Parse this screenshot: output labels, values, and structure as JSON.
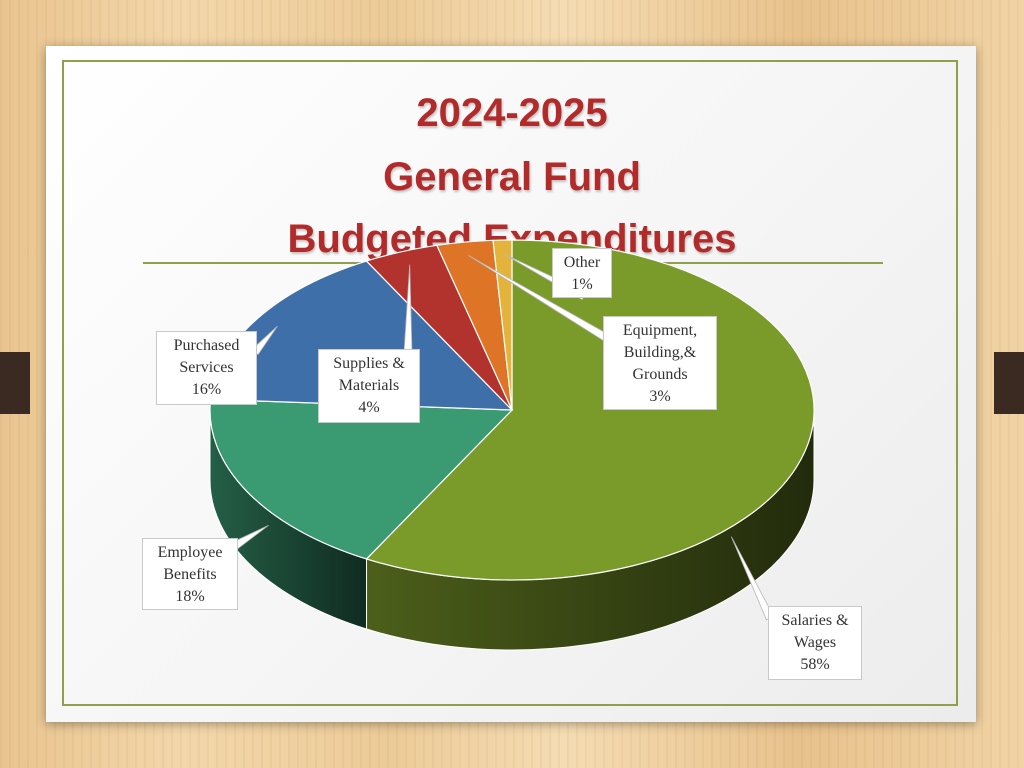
{
  "slide": {
    "title_lines": [
      "2024-2025",
      "General Fund",
      "Budgeted Expenditures"
    ]
  },
  "chart_data": {
    "type": "pie",
    "title": "2024-2025 General Fund Budgeted Expenditures",
    "slices": [
      {
        "label": "Salaries & Wages",
        "label_lines": [
          "Salaries &",
          "Wages"
        ],
        "value": 58,
        "value_label": "58%",
        "color": "#7a9a2a"
      },
      {
        "label": "Employee Benefits",
        "label_lines": [
          "Employee",
          "Benefits"
        ],
        "value": 18,
        "value_label": "18%",
        "color": "#3a9a72"
      },
      {
        "label": "Purchased Services",
        "label_lines": [
          "Purchased",
          "Services"
        ],
        "value": 16,
        "value_label": "16%",
        "color": "#3f6fa8"
      },
      {
        "label": "Supplies & Materials",
        "label_lines": [
          "Supplies &",
          "Materials"
        ],
        "value": 4,
        "value_label": "4%",
        "color": "#b2322d"
      },
      {
        "label": "Equipment, Building,& Grounds",
        "label_lines": [
          "Equipment,",
          "Building,&",
          "Grounds"
        ],
        "value": 3,
        "value_label": "3%",
        "color": "#dd7426"
      },
      {
        "label": "Other",
        "label_lines": [
          "Other"
        ],
        "value": 1,
        "value_label": "1%",
        "color": "#e3b33c"
      }
    ]
  }
}
